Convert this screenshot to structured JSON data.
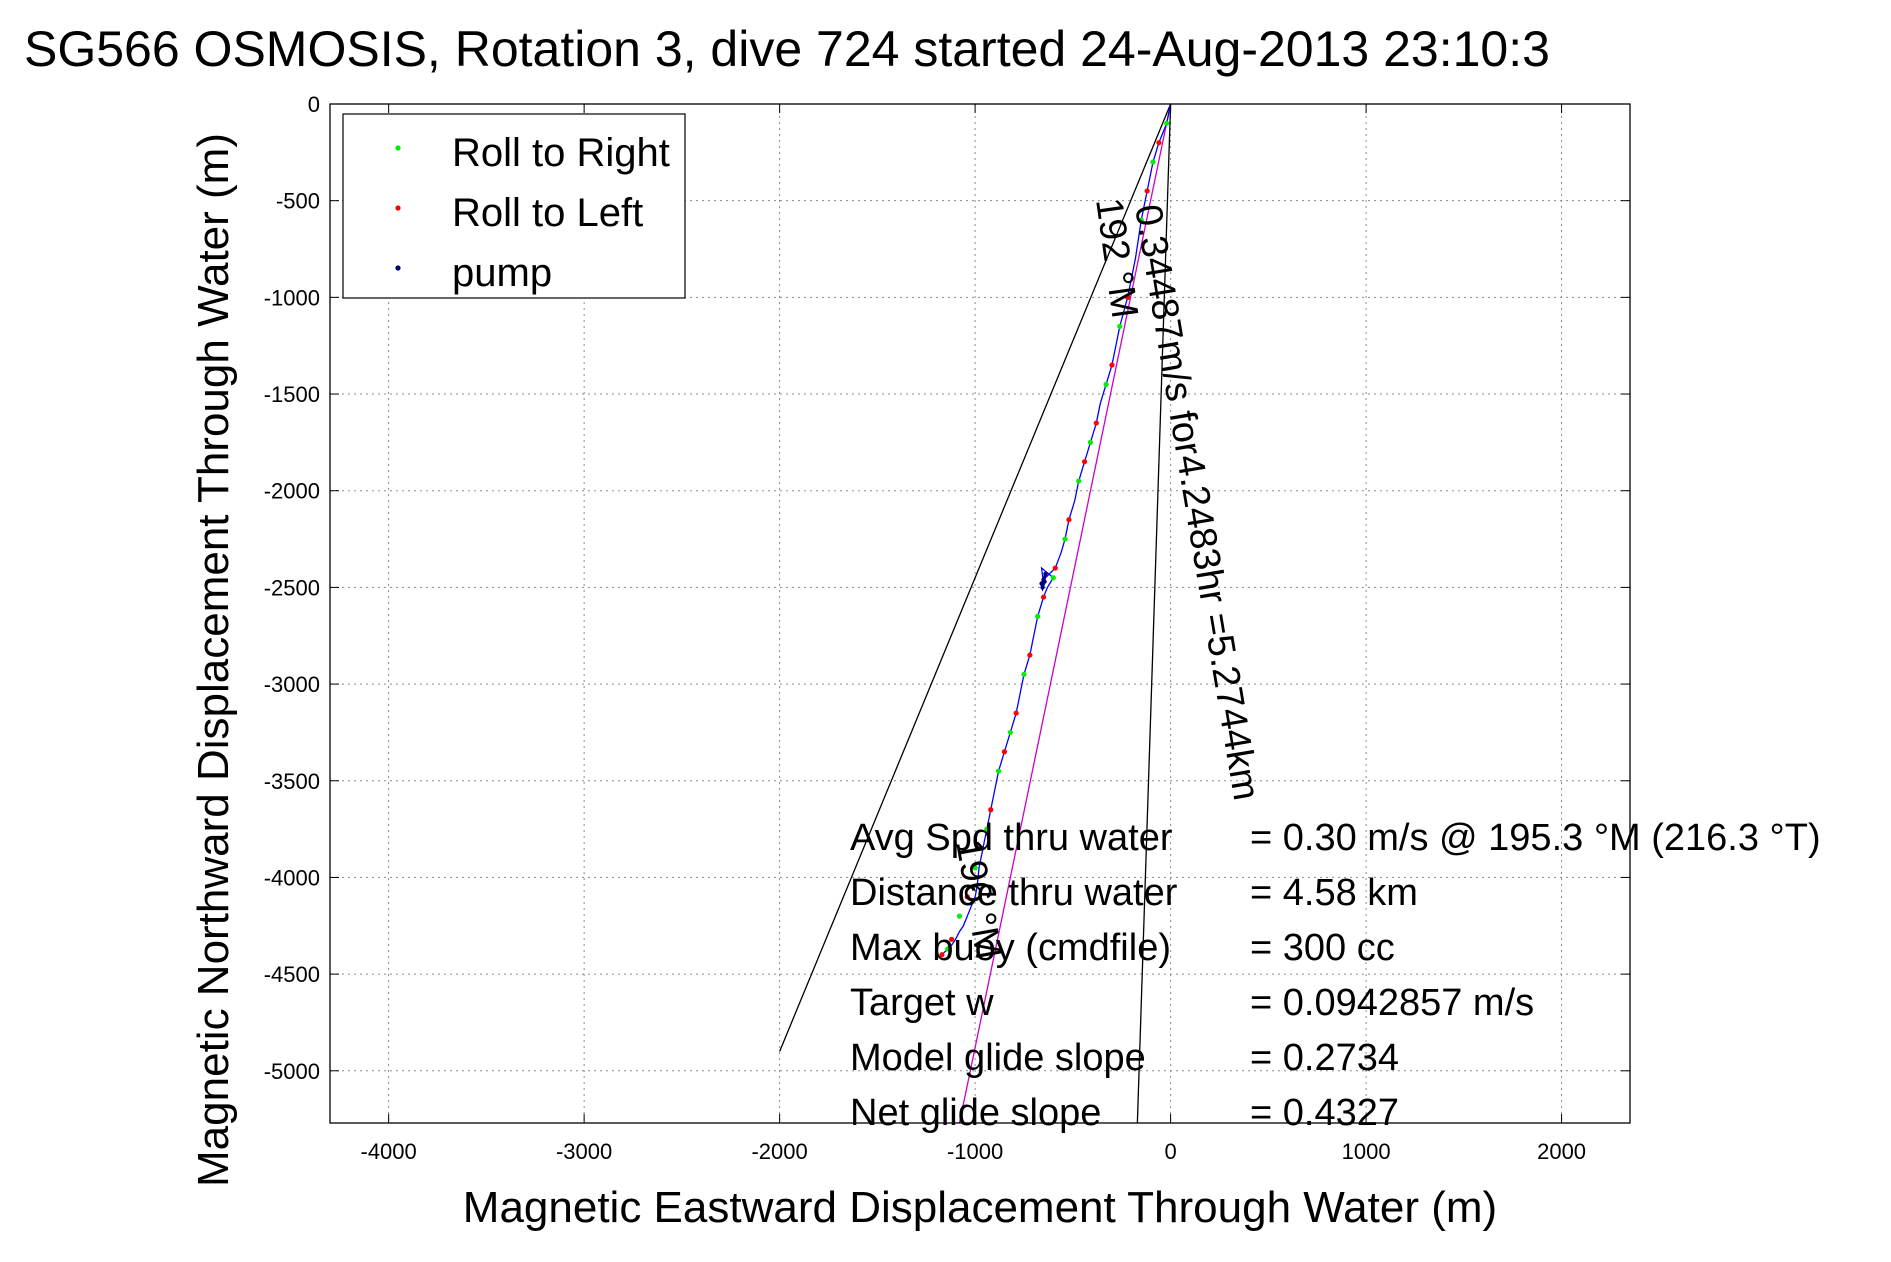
{
  "chart_data": {
    "type": "line",
    "title": "SG566 OSMOSIS, Rotation 3, dive 724 started 24-Aug-2013 23:10:3",
    "xlabel": "Magnetic Eastward Displacement Through Water (m)",
    "ylabel": "Magnetic Northward Displacement Through Water (m)",
    "xlim": [
      -4300,
      2350
    ],
    "ylim": [
      -5270,
      0
    ],
    "xticks": [
      -4000,
      -3000,
      -2000,
      -1000,
      0,
      1000,
      2000
    ],
    "yticks": [
      0,
      -500,
      -1000,
      -1500,
      -2000,
      -2500,
      -3000,
      -3500,
      -4000,
      -4500,
      -5000
    ],
    "grid": true,
    "legend_position": "top-left",
    "legend": [
      {
        "label": "Roll to Right",
        "color": "#00ee00"
      },
      {
        "label": "Roll to Left",
        "color": "#ff0000"
      },
      {
        "label": "pump",
        "color": "#000080"
      }
    ],
    "series": [
      {
        "name": "track",
        "color": "#0000ff",
        "x": [
          0,
          -10,
          -20,
          -40,
          -60,
          -90,
          -110,
          -120,
          -150,
          -180,
          -220,
          -260,
          -280,
          -300,
          -330,
          -360,
          -380,
          -410,
          -440,
          -470,
          -490,
          -520,
          -540,
          -560,
          -590,
          -620,
          -640,
          -650,
          -660,
          -600,
          -630,
          -650,
          -680,
          -700,
          -720,
          -750,
          -770,
          -790,
          -820,
          -850,
          -880,
          -900,
          -920,
          -940,
          -960,
          -980,
          -990,
          -1000,
          -1020,
          -1040,
          -1060,
          -1080,
          -1100,
          -1120,
          -1140,
          -1160,
          -1170,
          -1180
        ],
        "y": [
          0,
          -50,
          -100,
          -150,
          -200,
          -300,
          -400,
          -450,
          -600,
          -800,
          -1000,
          -1150,
          -1250,
          -1350,
          -1450,
          -1550,
          -1650,
          -1750,
          -1850,
          -1950,
          -2050,
          -2150,
          -2250,
          -2320,
          -2400,
          -2430,
          -2450,
          -2480,
          -2400,
          -2450,
          -2500,
          -2550,
          -2650,
          -2750,
          -2850,
          -2950,
          -3050,
          -3150,
          -3250,
          -3350,
          -3450,
          -3550,
          -3650,
          -3750,
          -3850,
          -3950,
          -4050,
          -4100,
          -4150,
          -4200,
          -4250,
          -4280,
          -4320,
          -4350,
          -4370,
          -4390,
          -4400,
          -4410
        ]
      },
      {
        "name": "Roll to Right",
        "color": "#00ee00",
        "x": [
          -20,
          -90,
          -150,
          -260,
          -330,
          -410,
          -470,
          -540,
          -600,
          -680,
          -750,
          -820,
          -880,
          -940,
          -1000,
          -1080,
          -1140
        ],
        "y": [
          -100,
          -300,
          -600,
          -1150,
          -1450,
          -1750,
          -1950,
          -2250,
          -2450,
          -2650,
          -2950,
          -3250,
          -3450,
          -3750,
          -3950,
          -4200,
          -4370
        ]
      },
      {
        "name": "Roll to Left",
        "color": "#ff0000",
        "x": [
          -60,
          -120,
          -220,
          -300,
          -380,
          -440,
          -520,
          -590,
          -650,
          -720,
          -790,
          -850,
          -920,
          -980,
          -1040,
          -1120,
          -1170
        ],
        "y": [
          -200,
          -450,
          -1000,
          -1350,
          -1650,
          -1850,
          -2150,
          -2400,
          -2550,
          -2850,
          -3150,
          -3350,
          -3650,
          -3850,
          -4100,
          -4320,
          -4400
        ]
      },
      {
        "name": "pump",
        "color": "#000080",
        "x": [
          -640,
          -650,
          -660,
          -655,
          -645
        ],
        "y": [
          -2430,
          -2460,
          -2480,
          -2500,
          -2470
        ]
      }
    ],
    "reference_lines": [
      {
        "name": "course-line-left",
        "color": "#000000",
        "x": [
          0,
          -2000
        ],
        "y": [
          0,
          -4900
        ]
      },
      {
        "name": "course-line-right",
        "color": "#000000",
        "x": [
          0,
          -170
        ],
        "y": [
          0,
          -5270
        ]
      },
      {
        "name": "net-heading-line",
        "color": "#cc00cc",
        "x": [
          0,
          -1080
        ],
        "y": [
          0,
          -5270
        ]
      }
    ],
    "annotations": {
      "speed_line": "0.34487m/s for4.2483hr =5.2744km",
      "heading_top": "192 °M",
      "heading_bottom": "196 °M"
    },
    "stats": [
      {
        "label": "Avg Spd thru water",
        "value": "=  0.30 m/s @ 195.3 °M (216.3 °T)"
      },
      {
        "label": "Distance thru water",
        "value": "=  4.58 km"
      },
      {
        "label": "Max buoy (cmdfile)",
        "value": "= 300 cc"
      },
      {
        "label": "Target w",
        "value": "= 0.0942857 m/s"
      },
      {
        "label": "Model glide slope",
        "value": "= 0.2734"
      },
      {
        "label": "Net glide slope",
        "value": "= 0.4327"
      }
    ]
  }
}
